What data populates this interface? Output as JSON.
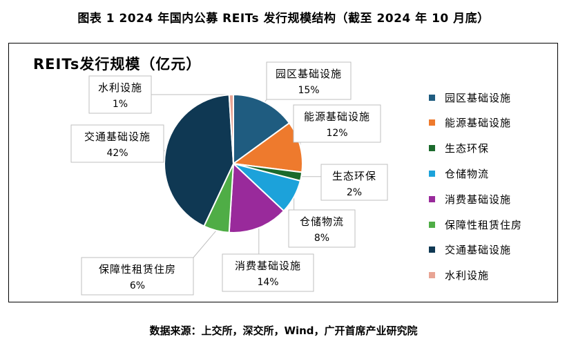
{
  "figure_title": "图表 1 2024 年国内公募 REITs 发行规模结构（截至 2024 年 10 月底）",
  "source_note": "数据来源：上交所，深交所，Wind，广开首席产业研究院",
  "chart_data": {
    "type": "pie",
    "title": "REITs发行规模（亿元）",
    "legend_position": "right",
    "slices": [
      {
        "name": "园区基础设施",
        "value": 15,
        "label": "15%",
        "color": "#1f5c80"
      },
      {
        "name": "能源基础设施",
        "value": 12,
        "label": "12%",
        "color": "#ee7a2d"
      },
      {
        "name": "生态环保",
        "value": 2,
        "label": "2%",
        "color": "#1b6a2c"
      },
      {
        "name": "仓储物流",
        "value": 8,
        "label": "8%",
        "color": "#1ca2da"
      },
      {
        "name": "消费基础设施",
        "value": 14,
        "label": "14%",
        "color": "#992a9b"
      },
      {
        "name": "保障性租赁住房",
        "value": 6,
        "label": "6%",
        "color": "#4fad46"
      },
      {
        "name": "交通基础设施",
        "value": 42,
        "label": "42%",
        "color": "#0f3853"
      },
      {
        "name": "水利设施",
        "value": 1,
        "label": "1%",
        "color": "#e8a494"
      }
    ]
  }
}
